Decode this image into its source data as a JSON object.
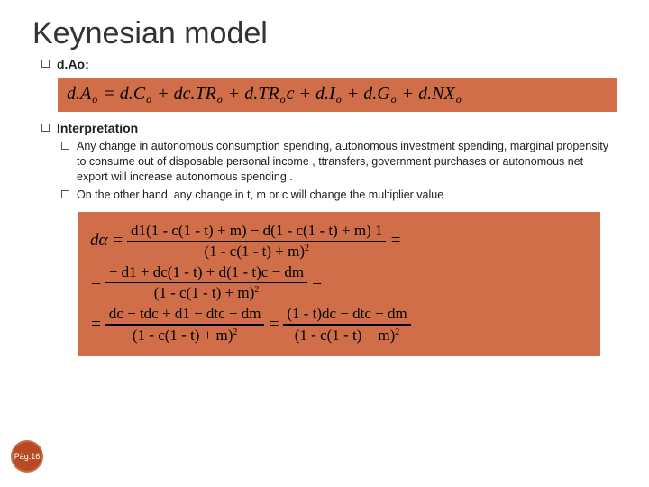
{
  "colors": {
    "accent": "#cf6e48",
    "badge": "#b74a22",
    "text": "#202020"
  },
  "title": "Keynesian model",
  "bullet_dao_label": "d.Ao:",
  "equation1": {
    "background": "#cf6e48",
    "parts": {
      "lhs": "d.A",
      "lhs_sub": "o",
      "eq": " = ",
      "t1": "d.C",
      "t1_sub": "o",
      "plus1": " + ",
      "t2": "dc.TR",
      "t2_sub": "o",
      "plus2": " + ",
      "t3": "d.TR",
      "t3_sub": "o",
      "t3_tail": "c",
      "plus3": " + ",
      "t4": "d.I",
      "t4_sub": "o",
      "plus4": " + ",
      "t5": "d.G",
      "t5_sub": "o",
      "plus5": " + ",
      "t6": "d.NX",
      "t6_sub": "o"
    }
  },
  "bullet_interpretation_label": "Interpretation",
  "interp_item1": "Any change in autonomous consumption spending,  autonomous investment spending, marginal propensity to consume out of disposable personal income , ttransfers, government purchases or autonomous net export will increase autonomous spending .",
  "interp_item2": "On the other hand, any change in t, m or c will change the multiplier value",
  "equation2": {
    "background": "#cf6e48",
    "line1": {
      "lhs": "dα = ",
      "num": "d1(1 - c(1 - t) + m) − d(1 - c(1 - t) + m) 1",
      "den_base": "(1 - c(1 - t) + m)",
      "den_exp": "2",
      "tail": " ="
    },
    "line2": {
      "lhs": "= ",
      "num": "− d1 + dc(1 - t) + d(1 - t)c − dm",
      "den_base": "(1 - c(1 - t) + m)",
      "den_exp": "2",
      "tail": " ="
    },
    "line3": {
      "lhs": "= ",
      "numA": "dc − tdc + d1 − dtc − dm",
      "denA_base": "(1 - c(1 - t) + m)",
      "denA_exp": "2",
      "mid": " = ",
      "numB": "(1 - t)dc − dtc − dm",
      "denB_base": "(1 - c(1 - t) + m)",
      "denB_exp": "2"
    }
  },
  "page_label": "Pàg.16"
}
